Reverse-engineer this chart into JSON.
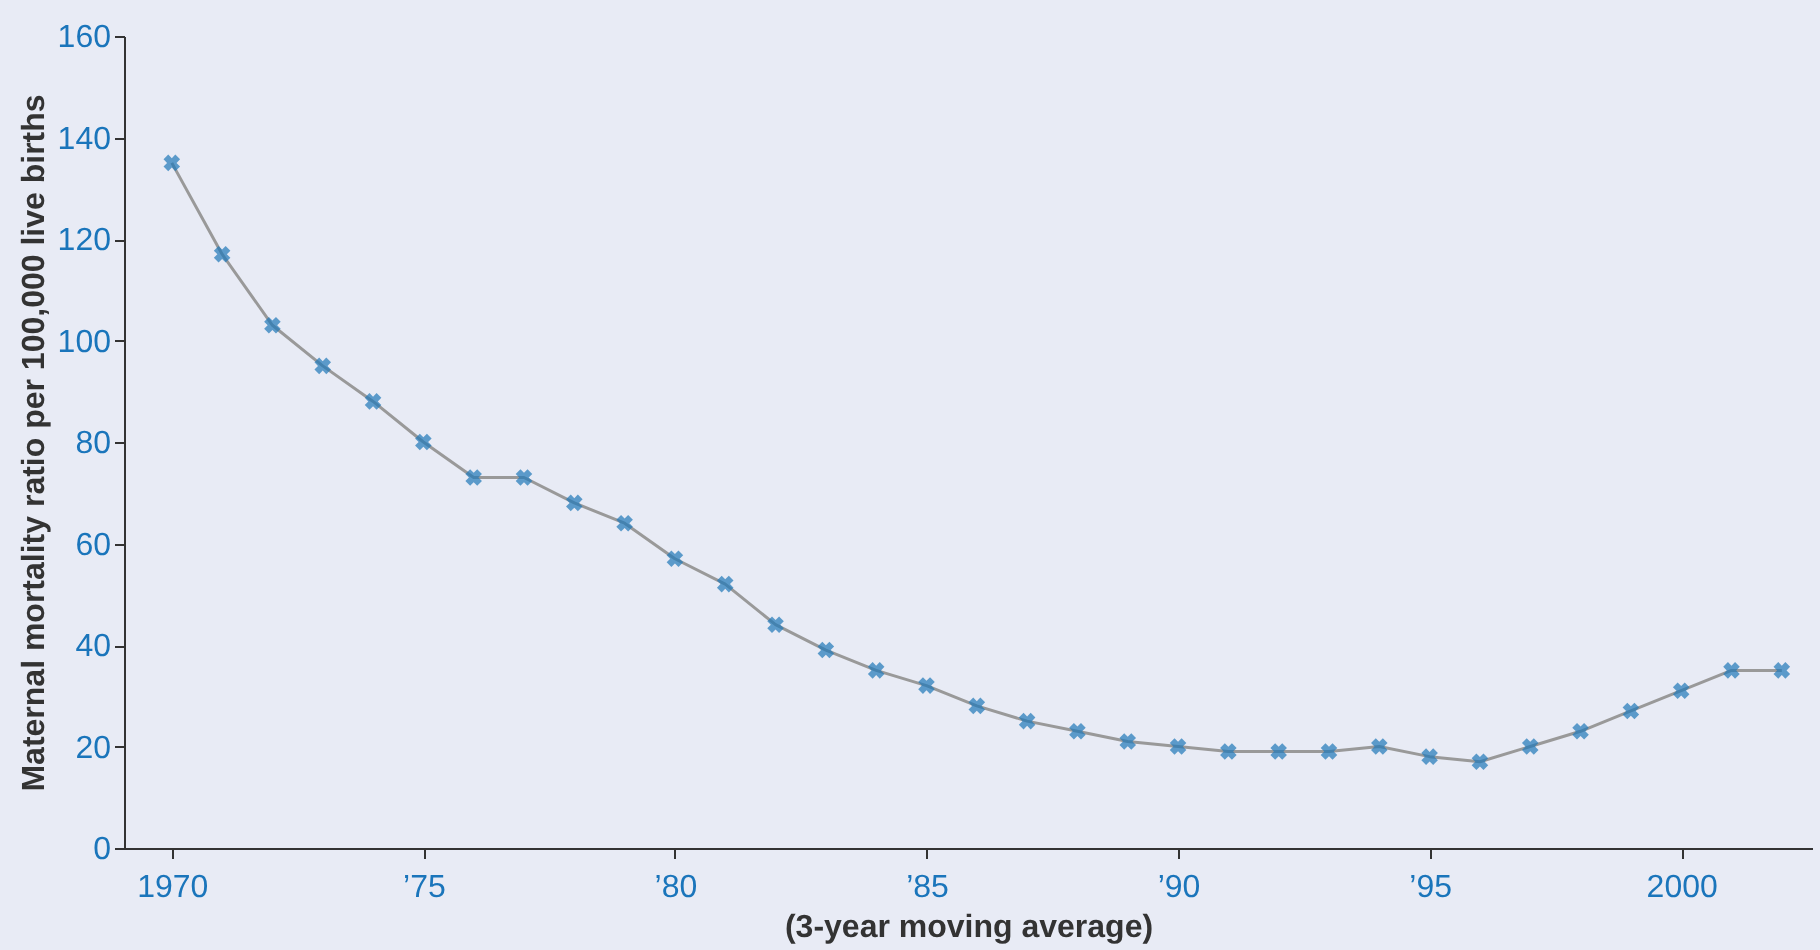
{
  "chart_data": {
    "type": "line",
    "xlabel": "(3-year moving average)",
    "ylabel": "Maternal mortality ratio per 100,000 live births",
    "x": [
      1970,
      1971,
      1972,
      1973,
      1974,
      1975,
      1976,
      1977,
      1978,
      1979,
      1980,
      1981,
      1982,
      1983,
      1984,
      1985,
      1986,
      1987,
      1988,
      1989,
      1990,
      1991,
      1992,
      1993,
      1994,
      1995,
      1996,
      1997,
      1998,
      1999,
      2000,
      2001,
      2002
    ],
    "series": [
      {
        "color": "#1f78b8",
        "values": [
          135,
          117,
          103,
          95,
          88,
          80,
          73,
          73,
          68,
          64,
          57,
          52,
          44,
          39,
          35,
          32,
          28,
          25,
          23,
          21,
          20,
          19,
          19,
          19,
          20,
          18,
          17,
          20,
          23,
          27,
          31,
          35,
          35
        ]
      }
    ],
    "xlim": [
      1969.05,
      2002.6
    ],
    "xticks": [
      1970,
      {
        "value": 1975,
        "label": "’75"
      },
      {
        "value": 1980,
        "label": "’80"
      },
      {
        "value": 1985,
        "label": "’85"
      },
      {
        "value": 1990,
        "label": "’90"
      },
      {
        "value": 1995,
        "label": "’95"
      },
      2000
    ],
    "ylim": [
      0,
      160
    ],
    "yticks": [
      0,
      20,
      40,
      60,
      80,
      100,
      120,
      140,
      160
    ],
    "marker": "cross",
    "line_style": "solid"
  }
}
